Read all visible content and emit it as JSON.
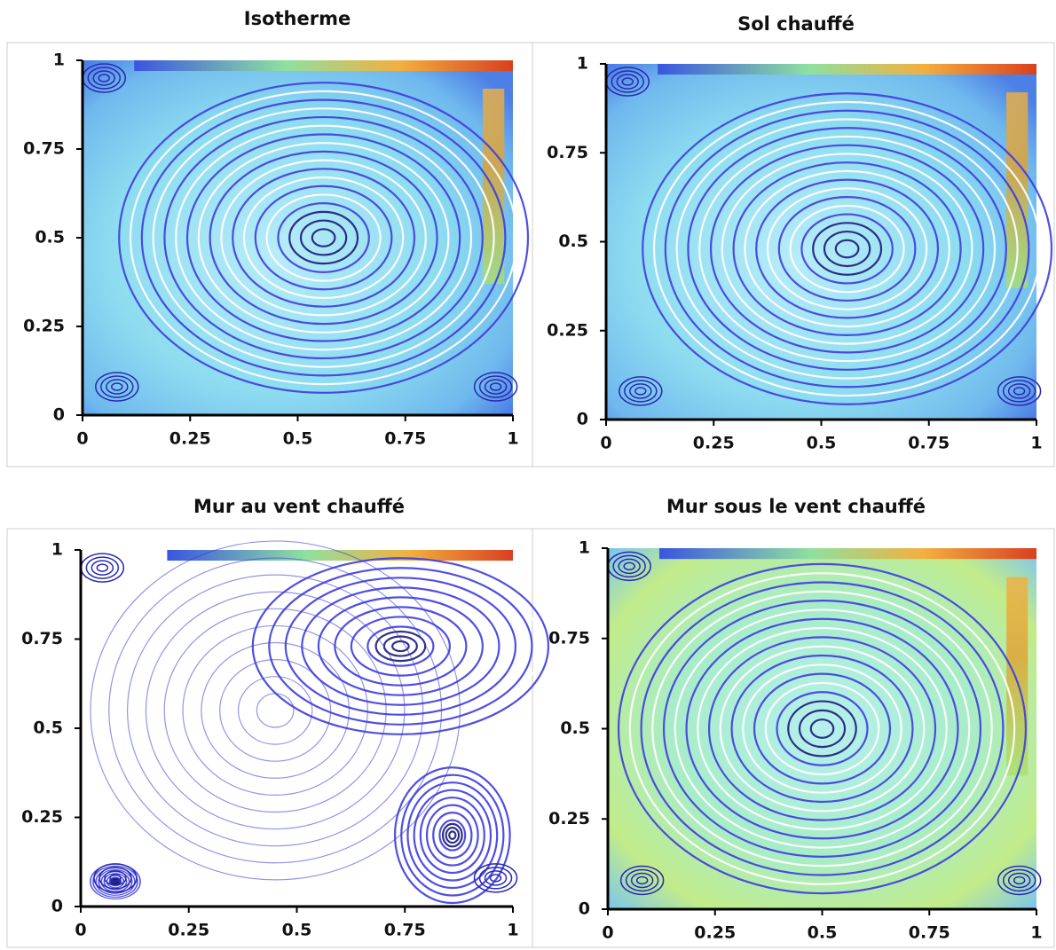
{
  "chart_data": [
    {
      "type": "streamline",
      "title": "Isotherme",
      "xlim": [
        0,
        1
      ],
      "ylim": [
        0,
        1
      ],
      "xticks": [
        0,
        0.25,
        0.5,
        0.75,
        1
      ],
      "yticks": [
        0,
        0.25,
        0.5,
        0.75,
        1
      ]
    },
    {
      "type": "streamline",
      "title": "Sol chauffé",
      "xlim": [
        0,
        1
      ],
      "ylim": [
        0,
        1
      ],
      "xticks": [
        0,
        0.25,
        0.5,
        0.75,
        1
      ],
      "yticks": [
        0,
        0.25,
        0.5,
        0.75,
        1
      ]
    },
    {
      "type": "streamline",
      "title": "Mur au vent chauffé",
      "xlim": [
        0,
        1
      ],
      "ylim": [
        0,
        1
      ],
      "xticks": [
        0,
        0.25,
        0.5,
        0.75,
        1
      ],
      "yticks": [
        0,
        0.25,
        0.5,
        0.75,
        1
      ]
    },
    {
      "type": "streamline",
      "title": "Mur sous le vent chauffé",
      "xlim": [
        0,
        1
      ],
      "ylim": [
        0,
        1
      ],
      "xticks": [
        0,
        0.25,
        0.5,
        0.75,
        1
      ],
      "yticks": [
        0,
        0.25,
        0.5,
        0.75,
        1
      ]
    }
  ]
}
